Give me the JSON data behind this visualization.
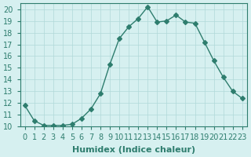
{
  "x": [
    0,
    1,
    2,
    3,
    4,
    5,
    6,
    7,
    8,
    9,
    10,
    11,
    12,
    13,
    14,
    15,
    16,
    17,
    18,
    19,
    20,
    21,
    22,
    23
  ],
  "y": [
    11.8,
    10.5,
    10.1,
    10.1,
    10.1,
    10.2,
    10.7,
    11.5,
    12.8,
    15.3,
    17.5,
    18.5,
    19.2,
    20.2,
    18.9,
    19.0,
    19.5,
    18.9,
    18.8,
    17.2,
    15.6,
    14.2,
    13.0,
    12.4
  ],
  "line_color": "#2e7d6e",
  "marker": "D",
  "marker_size": 3,
  "bg_color": "#d6f0f0",
  "grid_color": "#b0d8d8",
  "xlabel": "Humidex (Indice chaleur)",
  "xlim": [
    -0.5,
    23.5
  ],
  "ylim": [
    10,
    20.5
  ],
  "yticks": [
    10,
    11,
    12,
    13,
    14,
    15,
    16,
    17,
    18,
    19,
    20
  ],
  "xticks": [
    0,
    1,
    2,
    3,
    4,
    5,
    6,
    7,
    8,
    9,
    10,
    11,
    12,
    13,
    14,
    15,
    16,
    17,
    18,
    19,
    20,
    21,
    22,
    23
  ],
  "font_size": 7,
  "label_font_size": 8
}
